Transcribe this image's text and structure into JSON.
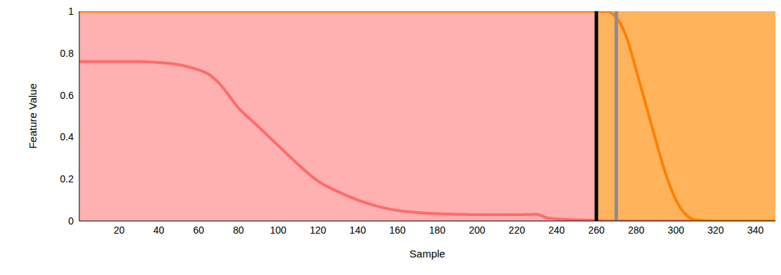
{
  "chart_data": {
    "type": "line",
    "x_label": "Sample",
    "y_label": "Feature Value",
    "x": [
      0,
      10,
      20,
      30,
      40,
      50,
      60,
      65,
      70,
      80,
      90,
      100,
      110,
      120,
      130,
      140,
      150,
      160,
      170,
      180,
      190,
      200,
      210,
      220,
      230,
      235,
      240,
      250,
      260,
      265,
      270,
      275,
      280,
      285,
      290,
      295,
      300,
      305,
      310,
      320,
      330,
      340,
      350
    ],
    "series": [
      {
        "color": "#ff6b6b",
        "values": [
          0.76,
          0.76,
          0.76,
          0.76,
          0.755,
          0.745,
          0.72,
          0.7,
          0.66,
          0.54,
          0.45,
          0.36,
          0.27,
          0.19,
          0.14,
          0.1,
          0.07,
          0.05,
          0.04,
          0.035,
          0.032,
          0.03,
          0.03,
          0.03,
          0.032,
          0.015,
          0.01,
          0.005,
          0.003,
          0,
          0,
          0,
          0,
          0,
          0,
          0,
          0,
          0,
          0,
          0,
          0,
          0,
          0
        ]
      },
      {
        "color": "#ff8000",
        "values": [
          1,
          1,
          1,
          1,
          1,
          1,
          1,
          1,
          1,
          1,
          1,
          1,
          1,
          1,
          1,
          1,
          1,
          1,
          1,
          1,
          1,
          1,
          1,
          1,
          1,
          1,
          1,
          1,
          1,
          1,
          0.97,
          0.88,
          0.72,
          0.55,
          0.38,
          0.22,
          0.1,
          0.03,
          0.005,
          0,
          0,
          0,
          0
        ]
      }
    ],
    "regions": [
      {
        "x0": 0,
        "x1": 260,
        "color": "#ffb0b0"
      },
      {
        "x0": 260,
        "x1": 350,
        "color": "#ffb45c"
      }
    ],
    "vlines": [
      {
        "x": 260,
        "color": "#000000"
      },
      {
        "x": 270,
        "color": "#8c8c8c"
      }
    ],
    "xlim": [
      0,
      350
    ],
    "xticks": [
      20,
      40,
      60,
      80,
      100,
      120,
      140,
      160,
      180,
      200,
      220,
      240,
      260,
      280,
      300,
      320,
      340
    ],
    "ylim": [
      0,
      1
    ],
    "yticks": [
      0,
      0.2,
      0.4,
      0.6,
      0.8,
      1
    ],
    "grid": false
  }
}
